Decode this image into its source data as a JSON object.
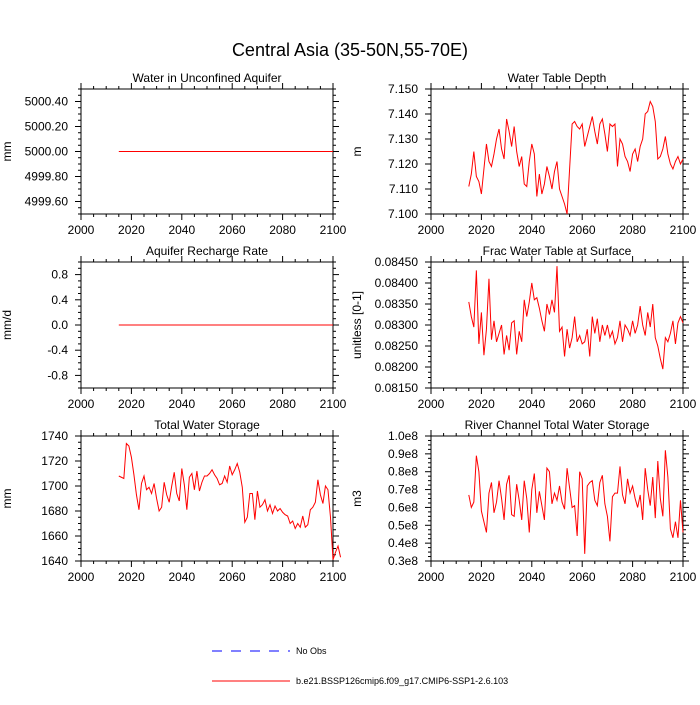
{
  "page_title": "Central Asia (35-50N,55-70E)",
  "colors": {
    "model": "#ff0000",
    "obs": "#0000ff",
    "axis": "#000000"
  },
  "legend": {
    "obs_label": "No Obs",
    "model_label": "b.e21.BSSP126cmip6.f09_g17.CMIP6-SSP1-2.6.103"
  },
  "chart_data": [
    {
      "type": "line",
      "title": "Water in Unconfined Aquifer",
      "ylabel": "mm",
      "xlim": [
        2000,
        2100
      ],
      "ylim": [
        4999.5,
        5000.5
      ],
      "xticks": [
        2000,
        2020,
        2040,
        2060,
        2080,
        2100
      ],
      "yticks": [
        4999.6,
        4999.8,
        5000.0,
        5000.2,
        5000.4
      ],
      "ytick_labels": [
        "4999.60",
        "4999.80",
        "5000.00",
        "5000.20",
        "5000.40"
      ],
      "x_start": 2015,
      "series": [
        {
          "values": [
            5000,
            5000,
            5000,
            5000,
            5000,
            5000,
            5000,
            5000,
            5000,
            5000,
            5000,
            5000,
            5000,
            5000,
            5000,
            5000,
            5000,
            5000,
            5000,
            5000,
            5000,
            5000,
            5000,
            5000,
            5000,
            5000,
            5000,
            5000,
            5000,
            5000,
            5000,
            5000,
            5000,
            5000,
            5000,
            5000,
            5000,
            5000,
            5000,
            5000,
            5000,
            5000,
            5000,
            5000,
            5000,
            5000,
            5000,
            5000,
            5000,
            5000,
            5000,
            5000,
            5000,
            5000,
            5000,
            5000,
            5000,
            5000,
            5000,
            5000,
            5000,
            5000,
            5000,
            5000,
            5000,
            5000,
            5000,
            5000,
            5000,
            5000,
            5000,
            5000,
            5000,
            5000,
            5000,
            5000,
            5000,
            5000,
            5000,
            5000,
            5000,
            5000,
            5000,
            5000,
            5000,
            5000
          ]
        }
      ]
    },
    {
      "type": "line",
      "title": "Water Table Depth",
      "ylabel": "m",
      "xlim": [
        2000,
        2100
      ],
      "ylim": [
        7.1,
        7.15
      ],
      "xticks": [
        2000,
        2020,
        2040,
        2060,
        2080,
        2100
      ],
      "yticks": [
        7.1,
        7.11,
        7.12,
        7.13,
        7.14,
        7.15
      ],
      "ytick_labels": [
        "7.100",
        "7.110",
        "7.120",
        "7.130",
        "7.140",
        "7.150"
      ],
      "x_start": 2015,
      "series": [
        {
          "values": [
            7.111,
            7.116,
            7.125,
            7.115,
            7.113,
            7.108,
            7.118,
            7.128,
            7.121,
            7.119,
            7.124,
            7.13,
            7.134,
            7.126,
            7.122,
            7.138,
            7.133,
            7.127,
            7.135,
            7.125,
            7.119,
            7.123,
            7.112,
            7.111,
            7.121,
            7.128,
            7.124,
            7.107,
            7.116,
            7.108,
            7.112,
            7.119,
            7.115,
            7.11,
            7.117,
            7.121,
            7.11,
            7.107,
            7.104,
            7.1,
            7.118,
            7.136,
            7.137,
            7.135,
            7.134,
            7.136,
            7.127,
            7.131,
            7.135,
            7.139,
            7.133,
            7.128,
            7.136,
            7.138,
            7.132,
            7.125,
            7.136,
            7.135,
            7.136,
            7.119,
            7.13,
            7.128,
            7.123,
            7.121,
            7.117,
            7.124,
            7.126,
            7.121,
            7.127,
            7.13,
            7.14,
            7.141,
            7.145,
            7.143,
            7.137,
            7.122,
            7.123,
            7.126,
            7.131,
            7.124,
            7.12,
            7.118,
            7.121,
            7.123,
            7.12,
            7.122
          ]
        }
      ]
    },
    {
      "type": "line",
      "title": "Aquifer Recharge Rate",
      "ylabel": "mm/d",
      "xlim": [
        2000,
        2100
      ],
      "ylim": [
        -1.0,
        1.0
      ],
      "xticks": [
        2000,
        2020,
        2040,
        2060,
        2080,
        2100
      ],
      "yticks": [
        -0.8,
        -0.4,
        0.0,
        0.4,
        0.8
      ],
      "ytick_labels": [
        "-0.8",
        "-0.4",
        "0.0",
        "0.4",
        "0.8"
      ],
      "x_start": 2015,
      "series": [
        {
          "values": [
            0,
            0,
            0,
            0,
            0,
            0,
            0,
            0,
            0,
            0,
            0,
            0,
            0,
            0,
            0,
            0,
            0,
            0,
            0,
            0,
            0,
            0,
            0,
            0,
            0,
            0,
            0,
            0,
            0,
            0,
            0,
            0,
            0,
            0,
            0,
            0,
            0,
            0,
            0,
            0,
            0,
            0,
            0,
            0,
            0,
            0,
            0,
            0,
            0,
            0,
            0,
            0,
            0,
            0,
            0,
            0,
            0,
            0,
            0,
            0,
            0,
            0,
            0,
            0,
            0,
            0,
            0,
            0,
            0,
            0,
            0,
            0,
            0,
            0,
            0,
            0,
            0,
            0,
            0,
            0,
            0,
            0,
            0,
            0,
            0,
            0
          ]
        }
      ]
    },
    {
      "type": "line",
      "title": "Frac Water Table at Surface",
      "ylabel": "unitless [0-1]",
      "xlim": [
        2000,
        2100
      ],
      "ylim": [
        0.0815,
        0.0845
      ],
      "xticks": [
        2000,
        2020,
        2040,
        2060,
        2080,
        2100
      ],
      "yticks": [
        0.0815,
        0.082,
        0.0825,
        0.083,
        0.0835,
        0.084,
        0.0845
      ],
      "ytick_labels": [
        "0.08150",
        "0.08200",
        "0.08250",
        "0.08300",
        "0.08350",
        "0.08400",
        "0.08450"
      ],
      "x_start": 2015,
      "series": [
        {
          "values": [
            0.08355,
            0.0832,
            0.08295,
            0.0843,
            0.08255,
            0.0833,
            0.08228,
            0.0829,
            0.0841,
            0.08265,
            0.0831,
            0.0826,
            0.0828,
            0.083,
            0.0823,
            0.08275,
            0.0824,
            0.08305,
            0.0831,
            0.0823,
            0.08285,
            0.0826,
            0.0836,
            0.0832,
            0.08355,
            0.084,
            0.0836,
            0.08365,
            0.0834,
            0.0831,
            0.08285,
            0.0835,
            0.08325,
            0.0836,
            0.0833,
            0.0844,
            0.08285,
            0.08295,
            0.08225,
            0.0829,
            0.08245,
            0.0827,
            0.0832,
            0.0826,
            0.08275,
            0.08255,
            0.0826,
            0.0829,
            0.08225,
            0.0832,
            0.0828,
            0.08315,
            0.0826,
            0.083,
            0.08275,
            0.083,
            0.0827,
            0.08285,
            0.08255,
            0.0827,
            0.0831,
            0.0826,
            0.083,
            0.0829,
            0.08275,
            0.0831,
            0.0828,
            0.083,
            0.08345,
            0.083,
            0.08275,
            0.0833,
            0.08295,
            0.0835,
            0.0827,
            0.0825,
            0.0822,
            0.08195,
            0.0827,
            0.0826,
            0.0828,
            0.0831,
            0.08255,
            0.08305,
            0.0832,
            0.08305
          ]
        }
      ]
    },
    {
      "type": "line",
      "title": "Total Water Storage",
      "ylabel": "mm",
      "xlim": [
        2000,
        2100
      ],
      "ylim": [
        1640,
        1740
      ],
      "xticks": [
        2000,
        2020,
        2040,
        2060,
        2080,
        2100
      ],
      "yticks": [
        1640,
        1660,
        1680,
        1700,
        1720,
        1740
      ],
      "ytick_labels": [
        "1640",
        "1660",
        "1680",
        "1700",
        "1720",
        "1740"
      ],
      "x_start": 2015,
      "series": [
        {
          "values": [
            1708,
            1707,
            1706,
            1734,
            1732,
            1723,
            1709,
            1693,
            1681,
            1702,
            1708,
            1697,
            1699,
            1694,
            1702,
            1690,
            1680,
            1683,
            1703,
            1693,
            1687,
            1700,
            1711,
            1694,
            1688,
            1714,
            1701,
            1681,
            1707,
            1710,
            1697,
            1712,
            1696,
            1703,
            1708,
            1708,
            1710,
            1713,
            1709,
            1706,
            1701,
            1702,
            1708,
            1703,
            1716,
            1709,
            1713,
            1718,
            1711,
            1699,
            1671,
            1675,
            1694,
            1694,
            1673,
            1696,
            1683,
            1685,
            1689,
            1680,
            1685,
            1678,
            1684,
            1680,
            1682,
            1679,
            1677,
            1676,
            1670,
            1672,
            1666,
            1670,
            1667,
            1676,
            1667,
            1669,
            1681,
            1683,
            1687,
            1705,
            1693,
            1686,
            1700,
            1697,
            1675,
            1641,
            1647,
            1652,
            1643
          ]
        }
      ]
    },
    {
      "type": "line",
      "title": "River Channel Total Water Storage",
      "ylabel": "m3",
      "xlim": [
        2000,
        2100
      ],
      "ylim": [
        30000000,
        100000000
      ],
      "xticks": [
        2000,
        2020,
        2040,
        2060,
        2080,
        2100
      ],
      "yticks": [
        30000000,
        40000000,
        50000000,
        60000000,
        70000000,
        80000000,
        90000000,
        100000000
      ],
      "ytick_labels": [
        "0.3e8",
        "0.4e8",
        "0.5e8",
        "0.6e8",
        "0.7e8",
        "0.8e8",
        "0.9e8",
        "1.0e8"
      ],
      "x_start": 2015,
      "series": [
        {
          "values": [
            67000000,
            60000000,
            63000000,
            89000000,
            80000000,
            58000000,
            52000000,
            46000000,
            68000000,
            74000000,
            57000000,
            63000000,
            75000000,
            65000000,
            53000000,
            73000000,
            78000000,
            56000000,
            55000000,
            73000000,
            64000000,
            53000000,
            75000000,
            65000000,
            46000000,
            70000000,
            79000000,
            57000000,
            69000000,
            61000000,
            53000000,
            82000000,
            80000000,
            62000000,
            68000000,
            64000000,
            72000000,
            63000000,
            59000000,
            82000000,
            71000000,
            60000000,
            61000000,
            44000000,
            80000000,
            76000000,
            34000000,
            72000000,
            74000000,
            75000000,
            64000000,
            61000000,
            74000000,
            78000000,
            62000000,
            55000000,
            41000000,
            66000000,
            68000000,
            68000000,
            83000000,
            67000000,
            62000000,
            76000000,
            68000000,
            72000000,
            65000000,
            60000000,
            67000000,
            53000000,
            82000000,
            70000000,
            61000000,
            77000000,
            54000000,
            86000000,
            65000000,
            55000000,
            92000000,
            77000000,
            48000000,
            43000000,
            52000000,
            43000000,
            64000000,
            46000000
          ]
        }
      ]
    }
  ]
}
